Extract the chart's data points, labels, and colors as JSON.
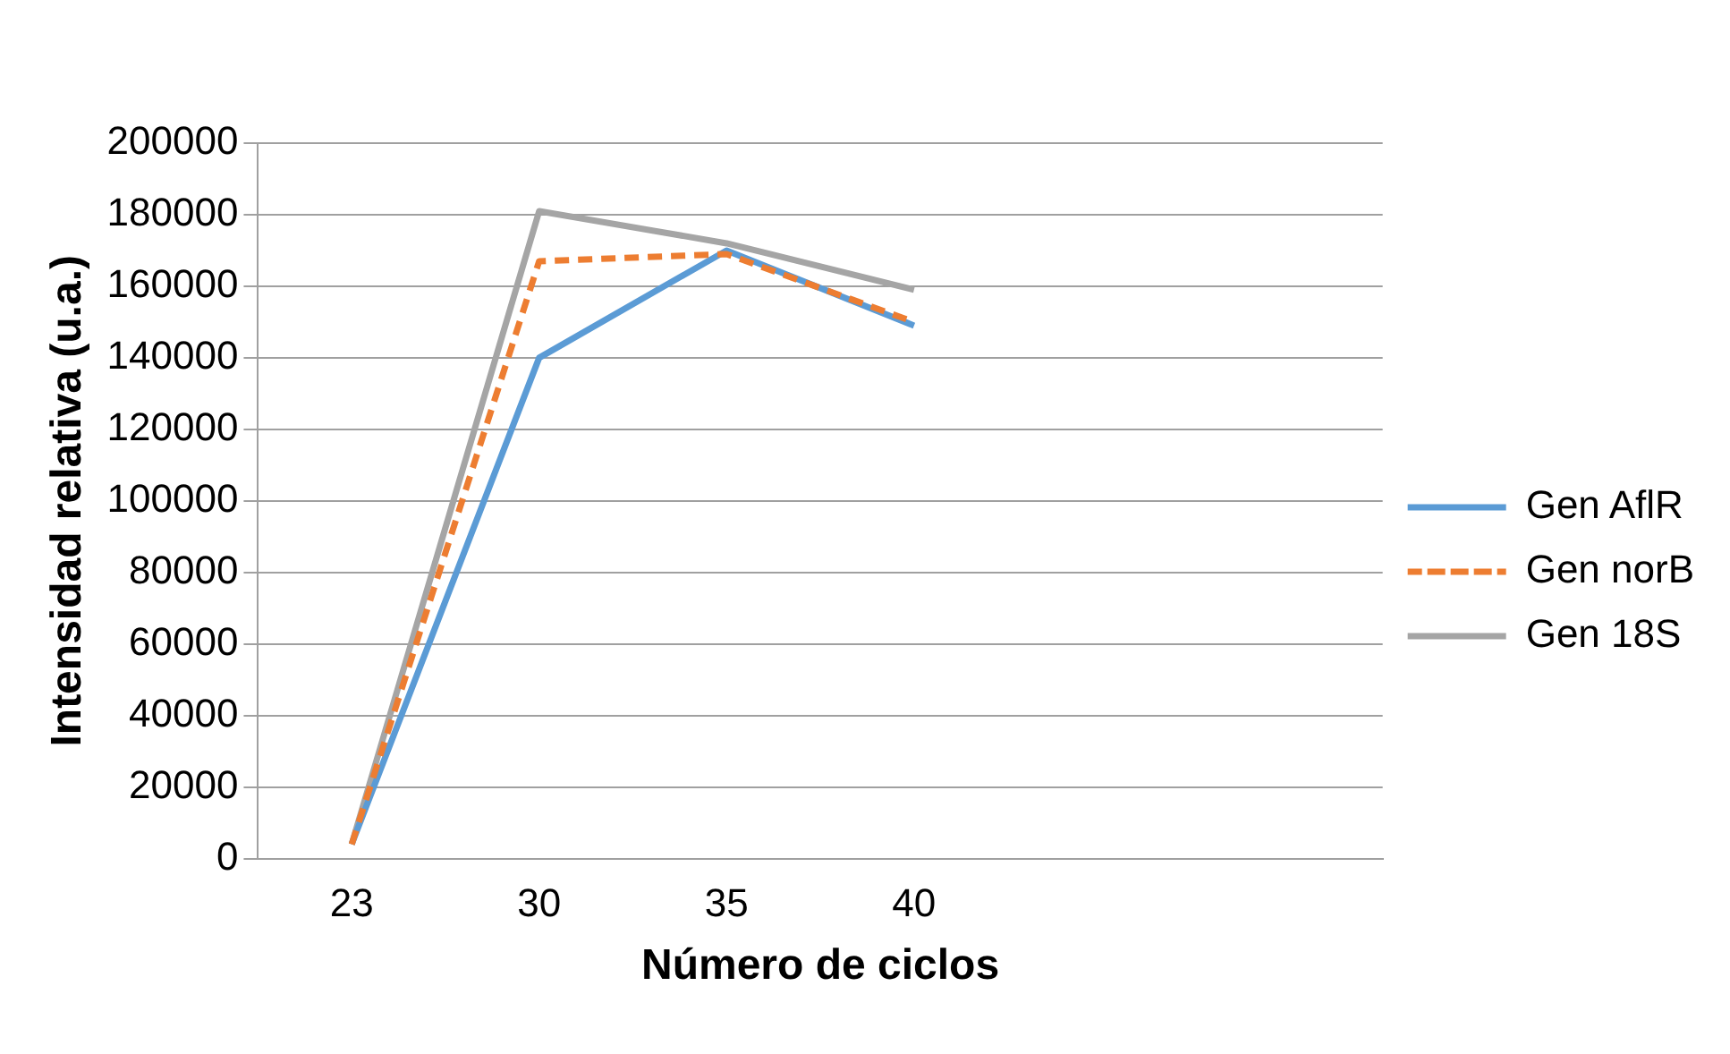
{
  "chart_data": {
    "type": "line",
    "xlabel": "Número de ciclos",
    "ylabel": "Intensidad relativa (u.a.)",
    "categories": [
      "23",
      "30",
      "35",
      "40",
      null,
      null
    ],
    "series": [
      {
        "name": "Gen AflR",
        "color": "#5b9bd5",
        "values": [
          4000,
          140000,
          170000,
          149000,
          null,
          null
        ],
        "line_style": "solid"
      },
      {
        "name": "Gen norB",
        "color": "#ed7d31",
        "values": [
          4000,
          167000,
          169000,
          150000,
          null,
          null
        ],
        "line_style": "dashed"
      },
      {
        "name": "Gen 18S",
        "color": "#a5a5a5",
        "values": [
          4000,
          181000,
          172000,
          159000,
          null,
          null
        ],
        "line_style": "solid"
      }
    ],
    "ylim": [
      0,
      200000
    ],
    "yticks": [
      0,
      20000,
      40000,
      60000,
      80000,
      100000,
      120000,
      140000,
      160000,
      180000,
      200000
    ],
    "grid": "y",
    "legend": "right",
    "marker": "none"
  }
}
